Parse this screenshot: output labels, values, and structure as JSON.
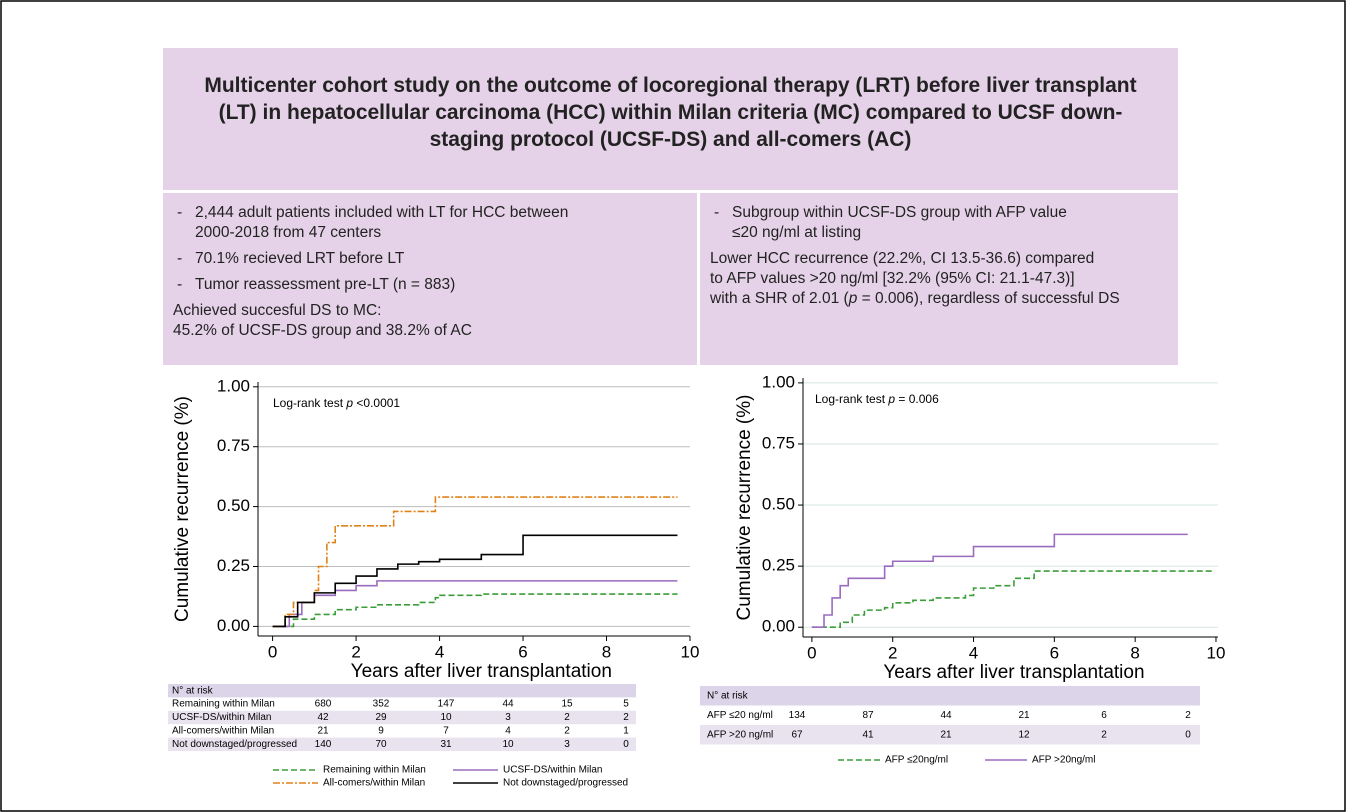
{
  "header": {
    "title": "Multicenter cohort study on the outcome of locoregional therapy (LRT) before liver transplant (LT) in hepatocellular carcinoma (HCC) within Milan criteria (MC) compared to UCSF down-staging protocol (UCSF-DS) and all-comers (AC)"
  },
  "panels": [
    {
      "bullets": [
        [
          "2,444 adult patients included with LT for HCC between",
          "2000-2018 from 47 centers"
        ],
        [
          "70.1% recieved LRT before LT"
        ],
        [
          "Tumor reassessment pre-LT (n = 883)"
        ]
      ],
      "lines": [
        "Achieved succesful DS to MC:",
        "45.2% of UCSF-DS group and 38.2% of AC"
      ]
    },
    {
      "bullets": [
        [
          "Subgroup within UCSF-DS group with AFP value",
          "≤20 ng/ml at listing"
        ]
      ],
      "lines": [
        "Lower HCC recurrence (22.2%, CI 13.5-36.6) compared",
        "to AFP values >20 ng/ml [32.2% (95% CI: 21.1-47.3)]",
        [
          {
            "text": "with a SHR of 2.01 ("
          },
          {
            "text": "p",
            "italic": true
          },
          {
            "text": " = 0.006), regardless of successful DS"
          }
        ]
      ]
    }
  ],
  "chart_data": [
    {
      "type": "step",
      "x_label": "Years after liver transplantation",
      "y_label": "Cumulative recurrence (%)",
      "annotation": [
        {
          "text": "Log-rank test "
        },
        {
          "text": "p",
          "italic": true
        },
        {
          "text": " <0.0001"
        }
      ],
      "xlim": [
        -0.35,
        10
      ],
      "ylim": [
        -0.04,
        1.02
      ],
      "xticks": [
        0,
        2,
        4,
        6,
        8,
        10
      ],
      "yticks": [
        {
          "value": 0,
          "label": "0.00"
        },
        {
          "value": 0.25,
          "label": "0.25"
        },
        {
          "value": 0.5,
          "label": "0.50"
        },
        {
          "value": 0.75,
          "label": "0.75"
        },
        {
          "value": 1,
          "label": "1.00"
        }
      ],
      "grid": true,
      "grid_color": "#bdbdbd",
      "series": [
        {
          "name": "Remaining within Milan",
          "color": "#3a9d3a",
          "dash": "dashed",
          "x": [
            0,
            0.5,
            1,
            1.5,
            2,
            2.5,
            3.5,
            3.9,
            4,
            5,
            9.7
          ],
          "values": [
            0,
            0.03,
            0.05,
            0.07,
            0.08,
            0.09,
            0.1,
            0.12,
            0.13,
            0.135,
            0.135
          ]
        },
        {
          "name": "UCSF-DS/within Milan",
          "color": "#9a6bbf",
          "dash": "solid",
          "x": [
            0,
            0.4,
            0.7,
            1,
            1.5,
            2,
            2.5,
            9.7
          ],
          "values": [
            0,
            0.05,
            0.1,
            0.13,
            0.15,
            0.17,
            0.19,
            0.19
          ]
        },
        {
          "name": "All-comers/within Milan",
          "color": "#e0821a",
          "dash": "dashdot",
          "x": [
            0,
            0.3,
            0.5,
            1,
            1.1,
            1.3,
            1.5,
            2.9,
            3.9,
            9.7
          ],
          "values": [
            0,
            0.05,
            0.1,
            0.15,
            0.25,
            0.35,
            0.42,
            0.48,
            0.54,
            0.54
          ]
        },
        {
          "name": "Not downstaged/progressed",
          "color": "#000000",
          "dash": "solid",
          "x": [
            0,
            0.3,
            0.6,
            1,
            1.5,
            2,
            2.5,
            3,
            3.5,
            4,
            5,
            6,
            9.7
          ],
          "values": [
            0,
            0.04,
            0.1,
            0.14,
            0.18,
            0.21,
            0.24,
            0.26,
            0.27,
            0.28,
            0.3,
            0.38,
            0.38
          ]
        }
      ],
      "risk_table": {
        "title": "N° at risk",
        "rows": [
          {
            "label": "Remaining within Milan",
            "values": [
              680,
              352,
              147,
              44,
              15,
              5
            ]
          },
          {
            "label": "UCSF-DS/within Milan",
            "values": [
              42,
              29,
              10,
              3,
              2,
              2
            ]
          },
          {
            "label": "All-comers/within Milan",
            "values": [
              21,
              9,
              7,
              4,
              2,
              1
            ]
          },
          {
            "label": "Not downstaged/progressed",
            "values": [
              140,
              70,
              31,
              10,
              3,
              0
            ]
          }
        ]
      }
    },
    {
      "type": "step",
      "x_label": "Years after liver transplantation",
      "y_label": "Cumulative recurrence (%)",
      "annotation": [
        {
          "text": "Log-rank test "
        },
        {
          "text": "p",
          "italic": true
        },
        {
          "text": " = 0.006"
        }
      ],
      "xlim": [
        -0.22,
        10.05
      ],
      "ylim": [
        -0.04,
        1.02
      ],
      "xticks": [
        0,
        2,
        4,
        6,
        8,
        10
      ],
      "yticks": [
        {
          "value": 0,
          "label": "0.00"
        },
        {
          "value": 0.25,
          "label": "0.25"
        },
        {
          "value": 0.5,
          "label": "0.50"
        },
        {
          "value": 0.75,
          "label": "0.75"
        },
        {
          "value": 1,
          "label": "1.00"
        }
      ],
      "grid": true,
      "grid_color": "#d6e8de",
      "series": [
        {
          "name": "AFP ≤20ng/ml",
          "color": "#3a9d3a",
          "dash": "dashed",
          "x": [
            0,
            0.7,
            1,
            1.3,
            1.8,
            2,
            2.5,
            3,
            3.8,
            4,
            4.5,
            5,
            5.5,
            9.9
          ],
          "values": [
            0,
            0.02,
            0.05,
            0.07,
            0.08,
            0.1,
            0.11,
            0.12,
            0.13,
            0.16,
            0.17,
            0.2,
            0.23,
            0.23
          ]
        },
        {
          "name": "AFP >20ng/ml",
          "color": "#9a6bbf",
          "dash": "solid",
          "x": [
            0,
            0.3,
            0.5,
            0.7,
            0.9,
            1.8,
            2,
            3,
            4,
            6,
            9.3
          ],
          "values": [
            0,
            0.05,
            0.12,
            0.17,
            0.2,
            0.25,
            0.27,
            0.29,
            0.33,
            0.38,
            0.38
          ]
        }
      ],
      "risk_table": {
        "title": "N° at risk",
        "rows": [
          {
            "label": "AFP ≤20 ng/ml",
            "values": [
              134,
              87,
              44,
              21,
              6,
              2
            ]
          },
          {
            "label": "AFP >20 ng/ml",
            "values": [
              67,
              41,
              21,
              12,
              2,
              0
            ]
          }
        ]
      }
    }
  ]
}
